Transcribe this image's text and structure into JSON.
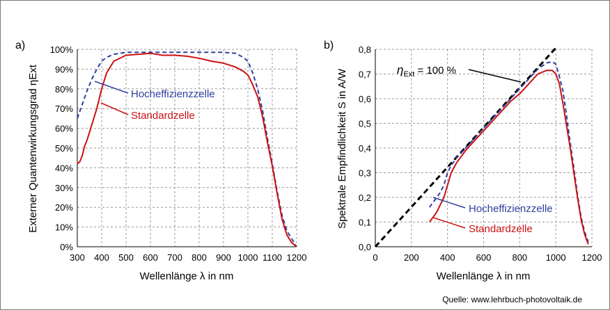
{
  "source": "Quelle: www.lehrbuch-photovoltaik.de",
  "colors": {
    "high": "#2f3f9e",
    "std": "#cc1111",
    "ideal": "#000000",
    "grid": "#9a9a9a"
  },
  "chart_data": [
    {
      "panel": "a)",
      "type": "line",
      "xlabel": "Wellenlänge λ in nm",
      "ylabel": "Externer Quantenwirkungsgrad ηExt",
      "xlim": [
        300,
        1200
      ],
      "ylim": [
        0,
        100
      ],
      "xticks": [
        300,
        400,
        500,
        600,
        700,
        800,
        900,
        1000,
        1100,
        1200
      ],
      "yticks": [
        "0%",
        "10%",
        "20%",
        "30%",
        "40%",
        "50%",
        "60%",
        "70%",
        "80%",
        "90%",
        "100%"
      ],
      "grid": true,
      "series": [
        {
          "name": "Hocheffizienzzelle",
          "style": "dashed",
          "x": [
            300,
            320,
            340,
            360,
            380,
            400,
            420,
            450,
            500,
            550,
            600,
            650,
            700,
            750,
            800,
            850,
            900,
            950,
            980,
            1000,
            1020,
            1040,
            1060,
            1080,
            1100,
            1120,
            1140,
            1160,
            1180,
            1200
          ],
          "y": [
            65,
            72,
            79,
            85,
            90,
            94,
            96,
            97.5,
            98.5,
            98.5,
            98.5,
            98.5,
            98.5,
            98.5,
            98.5,
            98.5,
            98.5,
            98,
            96,
            94,
            88,
            80,
            69,
            55,
            42,
            28,
            16,
            8,
            4,
            0
          ]
        },
        {
          "name": "Standardzelle",
          "style": "solid",
          "x": [
            300,
            310,
            320,
            330,
            340,
            350,
            360,
            380,
            400,
            420,
            450,
            500,
            550,
            600,
            650,
            700,
            750,
            800,
            850,
            900,
            950,
            980,
            1000,
            1020,
            1040,
            1060,
            1080,
            1100,
            1120,
            1140,
            1160,
            1180,
            1200
          ],
          "y": [
            42,
            43,
            46,
            51,
            54,
            58,
            62,
            70,
            80,
            88,
            94,
            97,
            97.5,
            98,
            97,
            97,
            96.5,
            95.5,
            94,
            93,
            91,
            89,
            87,
            82,
            76,
            66,
            53,
            41,
            27,
            14,
            6,
            2,
            0
          ]
        }
      ]
    },
    {
      "panel": "b)",
      "type": "line",
      "xlabel": "Wellenlänge λ in nm",
      "ylabel": "Spektrale Empfindlichkeit S in A/W",
      "xlim": [
        0,
        1200
      ],
      "ylim": [
        0,
        0.8
      ],
      "xticks": [
        0,
        200,
        400,
        600,
        800,
        1000,
        1200
      ],
      "yticks": [
        "0,0",
        "0,1",
        "0,2",
        "0,3",
        "0,4",
        "0,5",
        "0,6",
        "0,7",
        "0,8"
      ],
      "grid": true,
      "annotation": {
        "eta": "η",
        "sub": "Ext",
        "rest": " = 100 %"
      },
      "series": [
        {
          "name": "ηExt = 100 %",
          "style": "dashed",
          "x": [
            0,
            1000
          ],
          "y": [
            0,
            0.806
          ]
        },
        {
          "name": "Hocheffizienzzelle",
          "style": "dashed",
          "x": [
            300,
            330,
            360,
            380,
            400,
            420,
            450,
            500,
            550,
            600,
            650,
            700,
            750,
            800,
            850,
            900,
            950,
            980,
            1000,
            1020,
            1040,
            1060,
            1080,
            1100,
            1120,
            1140,
            1160,
            1180
          ],
          "y": [
            0.16,
            0.19,
            0.22,
            0.25,
            0.3,
            0.33,
            0.36,
            0.4,
            0.44,
            0.48,
            0.52,
            0.56,
            0.6,
            0.64,
            0.68,
            0.72,
            0.745,
            0.75,
            0.74,
            0.69,
            0.63,
            0.53,
            0.42,
            0.32,
            0.21,
            0.12,
            0.06,
            0.02
          ]
        },
        {
          "name": "Standardzelle",
          "style": "solid",
          "x": [
            300,
            320,
            340,
            360,
            380,
            400,
            420,
            450,
            500,
            550,
            600,
            650,
            700,
            750,
            800,
            850,
            900,
            950,
            980,
            1000,
            1020,
            1040,
            1060,
            1080,
            1100,
            1120,
            1140,
            1160,
            1180
          ],
          "y": [
            0.1,
            0.12,
            0.14,
            0.17,
            0.2,
            0.25,
            0.3,
            0.34,
            0.39,
            0.43,
            0.47,
            0.51,
            0.55,
            0.59,
            0.62,
            0.66,
            0.7,
            0.715,
            0.715,
            0.7,
            0.66,
            0.58,
            0.49,
            0.4,
            0.3,
            0.2,
            0.11,
            0.05,
            0.01
          ]
        }
      ]
    }
  ]
}
